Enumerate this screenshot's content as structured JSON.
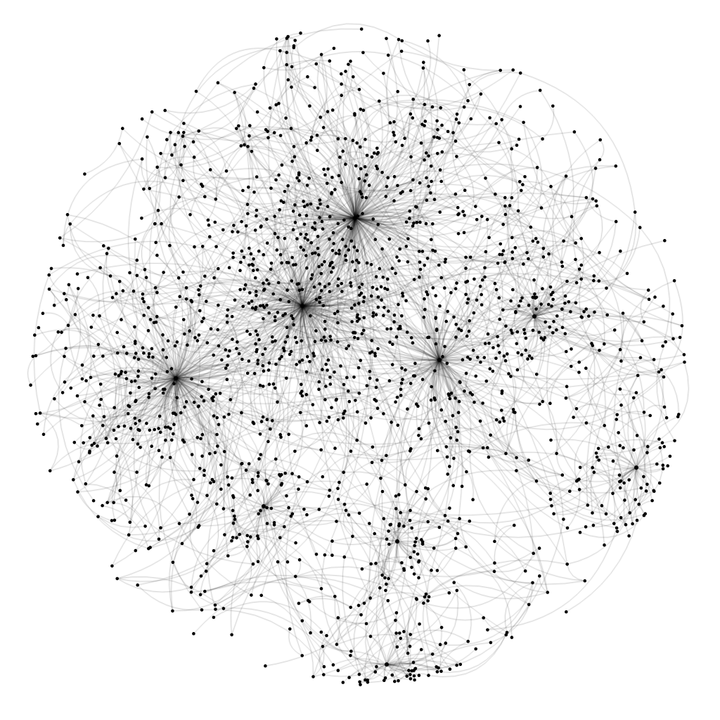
{
  "diagram": {
    "type": "network-graph",
    "layout": "force-directed",
    "background_color": "#ffffff",
    "node_color": "#000000",
    "edge_color": "#000000",
    "edge_style": "curved",
    "labels_shown": false,
    "hubs": [
      {
        "id": "hub-top",
        "degree": 260
      },
      {
        "id": "hub-center",
        "degree": 240
      },
      {
        "id": "hub-left",
        "degree": 190
      },
      {
        "id": "hub-right",
        "degree": 130
      },
      {
        "id": "hub-mid-right",
        "degree": 80
      },
      {
        "id": "hub-lower-left",
        "degree": 45
      },
      {
        "id": "hub-lower-center",
        "degree": 40
      },
      {
        "id": "hub-right-lower",
        "degree": 55
      },
      {
        "id": "hub-bottom",
        "degree": 45
      }
    ]
  }
}
